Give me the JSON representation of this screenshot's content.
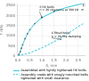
{
  "chart_data": {
    "type": "line",
    "xlabel": "δ, mm",
    "ylabel": "F (kN)",
    "xlim": [
      0,
      2.8
    ],
    "ylim": [
      0,
      2600
    ],
    "xticks": [
      {
        "value": 0,
        "label": "0.0"
      },
      0.5,
      {
        "value": 1.0,
        "label": "1.0"
      },
      1.5,
      {
        "value": 2.0,
        "label": "2.0"
      },
      2.5
    ],
    "yticks": [
      0,
      500,
      1000,
      1500,
      2000,
      2500
    ],
    "grid": true,
    "legend": "lower right",
    "series": [
      {
        "name": "Assembled with lightly tightened HV bolts",
        "type": "line",
        "line_style": "solid",
        "color": "#00bcd4",
        "x": [
          0,
          0.05,
          0.1,
          0.15,
          0.2,
          0.3,
          0.4,
          0.5,
          0.7,
          1.0,
          1.5,
          2.0,
          2.5,
          2.7
        ],
        "values": [
          0,
          80,
          200,
          380,
          550,
          850,
          1100,
          1300,
          1600,
          1900,
          2200,
          2400,
          2550,
          2600
        ]
      },
      {
        "name": "Assembly made with snugly mounted bolts\ntightened with small clearance",
        "type": "line",
        "line_style": "dashed",
        "color": "#00bcd4",
        "x": [
          0,
          0.5,
          1.0,
          1.5,
          2.0,
          2.5,
          2.7
        ],
        "values": [
          0,
          150,
          400,
          700,
          1050,
          1450,
          1600
        ]
      },
      {
        "type": "scatter",
        "marker": "square",
        "color": "#555555",
        "x": [
          0.05,
          0.1,
          0.15,
          0.2,
          0.3,
          0.4,
          0.5,
          0.7,
          1.0,
          1.5
        ],
        "values": [
          80,
          200,
          380,
          550,
          850,
          1100,
          1300,
          1600,
          1900,
          2200
        ]
      }
    ],
    "annotations": [
      {
        "text": "6 HV bolts\nn = 20 clearance at 300 kN · m",
        "x": 0.9,
        "y": 2200,
        "arrow_x": 1.0,
        "arrow_y": 1900
      },
      {
        "text": "C",
        "x": 2.68,
        "y": 2580
      },
      {
        "text": "6 fitted bolts\nn = 20 fine damping",
        "x": 1.4,
        "y": 900,
        "arrow_x": 1.8,
        "arrow_y": 820
      }
    ]
  }
}
